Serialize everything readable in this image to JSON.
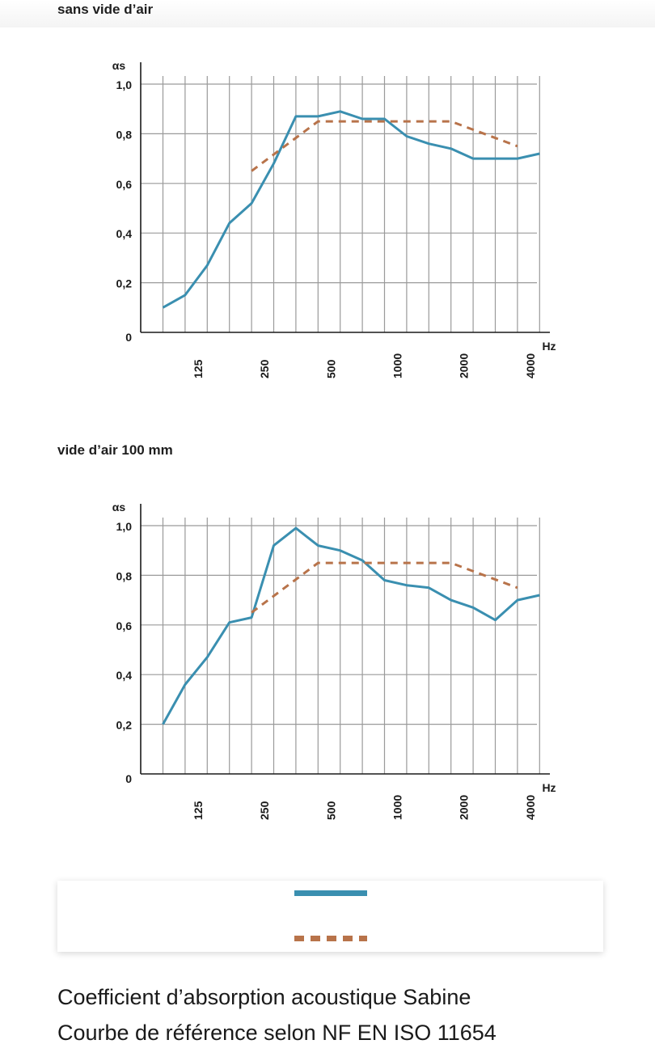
{
  "page": {
    "sections": [
      {
        "title": "sans vide d’air"
      },
      {
        "title": "vide d’air 100 mm"
      }
    ],
    "footer": {
      "line1": "Coefficient d’absorption acoustique Sabine",
      "line2": "Courbe de référence selon NF EN ISO 11654"
    },
    "colors": {
      "measured": "#3a8fb0",
      "reference": "#b8734a",
      "grid": "#9a9a9a",
      "axis": "#1a1a1a"
    }
  },
  "chart_data": [
    {
      "type": "line",
      "title": "sans vide d’air",
      "ylabel": "αs",
      "xlabel": "Hz",
      "x": [
        100,
        125,
        160,
        200,
        250,
        315,
        400,
        500,
        630,
        800,
        1000,
        1250,
        1600,
        2000,
        2500,
        3150,
        4000,
        5000
      ],
      "x_tick_labels": [
        "125",
        "250",
        "500",
        "1000",
        "2000",
        "4000"
      ],
      "x_tick_values": [
        125,
        250,
        500,
        1000,
        2000,
        4000
      ],
      "y_ticks": [
        0,
        0.2,
        0.4,
        0.6,
        0.8,
        1.0
      ],
      "y_tick_labels": [
        "0",
        "0,2",
        "0,4",
        "0,6",
        "0,8",
        "1,0"
      ],
      "ylim": [
        0,
        1.0
      ],
      "grid": true,
      "series": [
        {
          "style": "solid",
          "values": [
            0.1,
            0.15,
            0.27,
            0.44,
            0.52,
            0.68,
            0.87,
            0.87,
            0.89,
            0.86,
            0.86,
            0.79,
            0.76,
            0.74,
            0.7,
            0.7,
            0.7,
            0.72
          ]
        },
        {
          "style": "dashed",
          "x": [
            250,
            500,
            1000,
            2000,
            4000
          ],
          "values": [
            0.65,
            0.85,
            0.85,
            0.85,
            0.75
          ]
        }
      ]
    },
    {
      "type": "line",
      "title": "vide d’air 100 mm",
      "ylabel": "αs",
      "xlabel": "Hz",
      "x": [
        100,
        125,
        160,
        200,
        250,
        315,
        400,
        500,
        630,
        800,
        1000,
        1250,
        1600,
        2000,
        2500,
        3150,
        4000,
        5000
      ],
      "x_tick_labels": [
        "125",
        "250",
        "500",
        "1000",
        "2000",
        "4000"
      ],
      "x_tick_values": [
        125,
        250,
        500,
        1000,
        2000,
        4000
      ],
      "y_ticks": [
        0,
        0.2,
        0.4,
        0.6,
        0.8,
        1.0
      ],
      "y_tick_labels": [
        "0",
        "0,2",
        "0,4",
        "0,6",
        "0,8",
        "1,0"
      ],
      "ylim": [
        0,
        1.0
      ],
      "grid": true,
      "series": [
        {
          "style": "solid",
          "values": [
            0.2,
            0.36,
            0.47,
            0.61,
            0.63,
            0.92,
            0.99,
            0.92,
            0.9,
            0.86,
            0.78,
            0.76,
            0.75,
            0.7,
            0.67,
            0.62,
            0.7,
            0.72
          ]
        },
        {
          "style": "dashed",
          "x": [
            250,
            500,
            1000,
            2000,
            4000
          ],
          "values": [
            0.65,
            0.85,
            0.85,
            0.85,
            0.75
          ]
        }
      ]
    }
  ]
}
